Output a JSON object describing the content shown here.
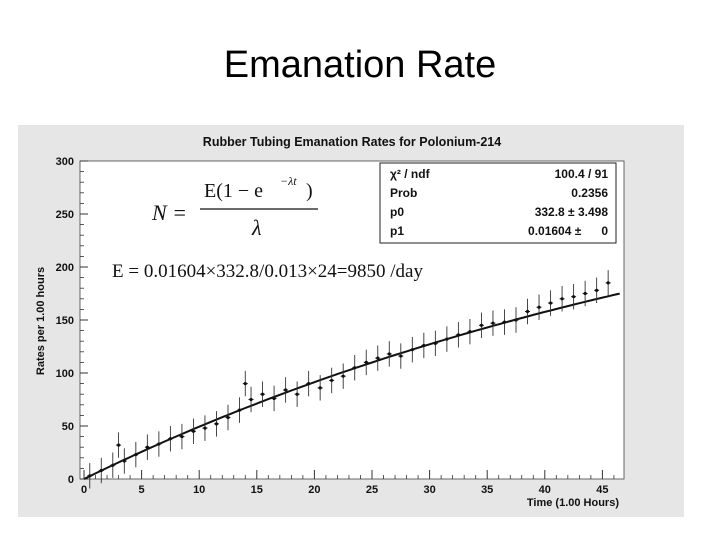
{
  "slide": {
    "title": "Emanation Rate"
  },
  "chart_data": {
    "type": "scatter",
    "title": "Rubber Tubing Emanation Rates for Polonium-214",
    "xlabel": "Time (1.00 Hours)",
    "ylabel": "Rates per 1.00 hours",
    "xlim": [
      0,
      47
    ],
    "ylim": [
      0,
      300
    ],
    "x_ticks": [
      0,
      5,
      10,
      15,
      20,
      25,
      30,
      35,
      40,
      45
    ],
    "y_ticks": [
      0,
      50,
      100,
      150,
      200,
      250,
      300
    ],
    "x_tick_labels": [
      "0",
      "5",
      "10",
      "15",
      "20",
      "25",
      "30",
      "35",
      "40",
      "45"
    ],
    "y_tick_labels": [
      "0",
      "50",
      "100",
      "150",
      "200",
      "250",
      "300"
    ],
    "grid": false,
    "series": [
      {
        "style": "points-with-error-bars",
        "x": [
          0.5,
          1.5,
          2.5,
          3.0,
          3.5,
          4.5,
          5.5,
          6.5,
          7.5,
          8.5,
          9.5,
          10.5,
          11.5,
          12.5,
          13.5,
          14.0,
          14.5,
          15.5,
          16.5,
          17.5,
          18.5,
          19.5,
          20.5,
          21.5,
          22.5,
          23.5,
          24.5,
          25.5,
          26.5,
          27.5,
          28.5,
          29.5,
          30.5,
          31.5,
          32.5,
          33.5,
          34.5,
          35.5,
          36.5,
          37.5,
          38.5,
          39.5,
          40.5,
          41.5,
          42.5,
          43.5,
          44.5,
          45.5
        ],
        "y": [
          3,
          8,
          13,
          32,
          17,
          23,
          30,
          33,
          38,
          40,
          45,
          48,
          52,
          58,
          65,
          90,
          75,
          80,
          76,
          84,
          80,
          90,
          86,
          93,
          97,
          105,
          110,
          114,
          118,
          116,
          122,
          126,
          128,
          132,
          136,
          139,
          145,
          147,
          148,
          150,
          158,
          162,
          166,
          170,
          172,
          175,
          178,
          185
        ],
        "yerr": 12
      }
    ],
    "fit": {
      "function": "N = E(1 - e^{-λt}) / λ",
      "p0": 332.8,
      "p1": 0.01604
    },
    "stats_box": {
      "rows": [
        [
          "χ² / ndf",
          "100.4 / 91"
        ],
        [
          "Prob",
          "0.2356"
        ],
        [
          "p0",
          "332.8 ± 3.498"
        ],
        [
          "p1",
          "0.01604 ±      0"
        ]
      ]
    },
    "annotations": {
      "formula_N": "N =",
      "formula_numerator": "E(1 − e",
      "formula_exponent": "−λt",
      "formula_close": ")",
      "formula_denominator": "λ",
      "calculation": "E = 0.01604×332.8/0.013×24=9850 /day"
    }
  }
}
